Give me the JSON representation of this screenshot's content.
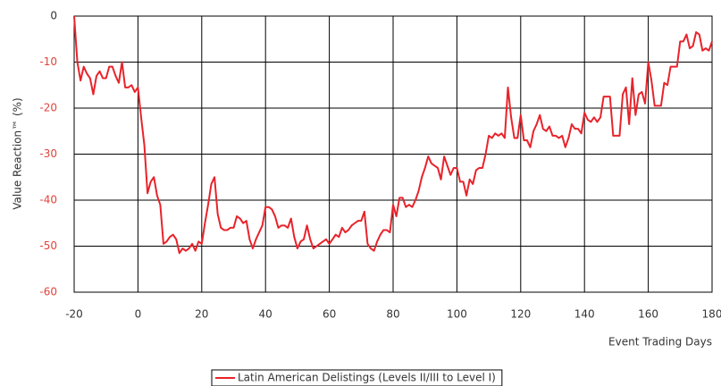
{
  "chart_data": {
    "type": "line",
    "y_label": "Value Reaction™ (%)",
    "x_label": "Event Trading Days",
    "x": [
      -20,
      -19,
      -18,
      -17,
      -16,
      -15,
      -14,
      -13,
      -12,
      -11,
      -10,
      -9,
      -8,
      -7,
      -6,
      -5,
      -4,
      -3,
      -2,
      -1,
      0,
      1,
      2,
      3,
      4,
      5,
      6,
      7,
      8,
      9,
      10,
      11,
      12,
      13,
      14,
      15,
      16,
      17,
      18,
      19,
      20,
      21,
      22,
      23,
      24,
      25,
      26,
      27,
      28,
      29,
      30,
      31,
      32,
      33,
      34,
      35,
      36,
      37,
      38,
      39,
      40,
      41,
      42,
      43,
      44,
      45,
      46,
      47,
      48,
      49,
      50,
      51,
      52,
      53,
      54,
      55,
      56,
      57,
      58,
      59,
      60,
      61,
      62,
      63,
      64,
      65,
      66,
      67,
      68,
      69,
      70,
      71,
      72,
      73,
      74,
      75,
      76,
      77,
      78,
      79,
      80,
      81,
      82,
      83,
      84,
      85,
      86,
      87,
      88,
      89,
      90,
      91,
      92,
      93,
      94,
      95,
      96,
      97,
      98,
      99,
      100,
      101,
      102,
      103,
      104,
      105,
      106,
      107,
      108,
      109,
      110,
      111,
      112,
      113,
      114,
      115,
      116,
      117,
      118,
      119,
      120,
      121,
      122,
      123,
      124,
      125,
      126,
      127,
      128,
      129,
      130,
      131,
      132,
      133,
      134,
      135,
      136,
      137,
      138,
      139,
      140,
      141,
      142,
      143,
      144,
      145,
      146,
      147,
      148,
      149,
      150,
      151,
      152,
      153,
      154,
      155,
      156,
      157,
      158,
      159,
      160,
      161,
      162,
      163,
      164,
      165,
      166,
      167,
      168,
      169,
      170,
      171,
      172,
      173,
      174,
      175,
      176,
      177,
      178,
      179,
      180
    ],
    "series": [
      {
        "name": "Latin American Delistings (Levels II/III to Level I)",
        "color": "#e8232a",
        "values": [
          0,
          -10,
          -14,
          -11,
          -12.5,
          -13.5,
          -17,
          -13,
          -12,
          -13.5,
          -13.5,
          -11,
          -11,
          -13,
          -14.5,
          -10,
          -15.5,
          -15.5,
          -15,
          -16.5,
          -15.5,
          -22,
          -28,
          -38.5,
          -36,
          -35,
          -39,
          -41,
          -49.5,
          -49,
          -48,
          -47.5,
          -48.5,
          -51.5,
          -50.5,
          -51,
          -50.5,
          -49.5,
          -51,
          -49,
          -49.5,
          -45,
          -41,
          -36.5,
          -35,
          -43,
          -46,
          -46.5,
          -46.5,
          -46,
          -46,
          -43.5,
          -44,
          -45,
          -44.5,
          -48.5,
          -50.5,
          -48.5,
          -47,
          -45.5,
          -41.5,
          -41.5,
          -42,
          -43.5,
          -46,
          -45.5,
          -45.5,
          -46,
          -44,
          -48,
          -50.5,
          -49,
          -48.5,
          -45.5,
          -48.5,
          -50.5,
          -50,
          -49.5,
          -49,
          -48.5,
          -49.5,
          -48.5,
          -47.5,
          -48,
          -46,
          -47,
          -46.5,
          -45.5,
          -45,
          -44.5,
          -44.5,
          -42.5,
          -49.5,
          -50.5,
          -51,
          -49,
          -47.5,
          -46.5,
          -46.5,
          -47,
          -41,
          -43.5,
          -39.5,
          -39.5,
          -41.5,
          -41,
          -41.5,
          -40,
          -38,
          -35,
          -33,
          -30.5,
          -32,
          -32.5,
          -33,
          -35.5,
          -30.5,
          -32.5,
          -34.5,
          -33,
          -33,
          -36,
          -36,
          -39,
          -35.5,
          -36.5,
          -33.5,
          -33,
          -33,
          -30,
          -26,
          -26.5,
          -25.5,
          -26,
          -25.5,
          -26.5,
          -15.5,
          -22,
          -26.5,
          -26.5,
          -21.5,
          -27,
          -27,
          -28.5,
          -25,
          -23.5,
          -21.5,
          -24.5,
          -25,
          -24,
          -26,
          -26,
          -26.5,
          -26,
          -28.5,
          -26.5,
          -23.5,
          -24.5,
          -24.5,
          -25.5,
          -21,
          -22.5,
          -23,
          -22,
          -23,
          -22,
          -17.5,
          -17.5,
          -17.5,
          -26,
          -26,
          -26,
          -17,
          -15.5,
          -23.5,
          -13.5,
          -21.5,
          -17,
          -16.5,
          -19,
          -10,
          -14,
          -19.5,
          -19.5,
          -19.5,
          -14.5,
          -15,
          -11,
          -11,
          -11,
          -5.5,
          -5.5,
          -4,
          -7,
          -6.5,
          -3.5,
          -4,
          -7.5,
          -7,
          -7.5,
          -5.5
        ]
      }
    ],
    "xlim": [
      -20,
      180
    ],
    "xticks": [
      -20,
      0,
      20,
      40,
      60,
      80,
      100,
      120,
      140,
      160,
      180
    ],
    "ylim": [
      -60,
      0
    ],
    "yticks": [
      -60,
      -50,
      -40,
      -30,
      -20,
      -10,
      0
    ],
    "grid": true,
    "legend": "bottom"
  }
}
